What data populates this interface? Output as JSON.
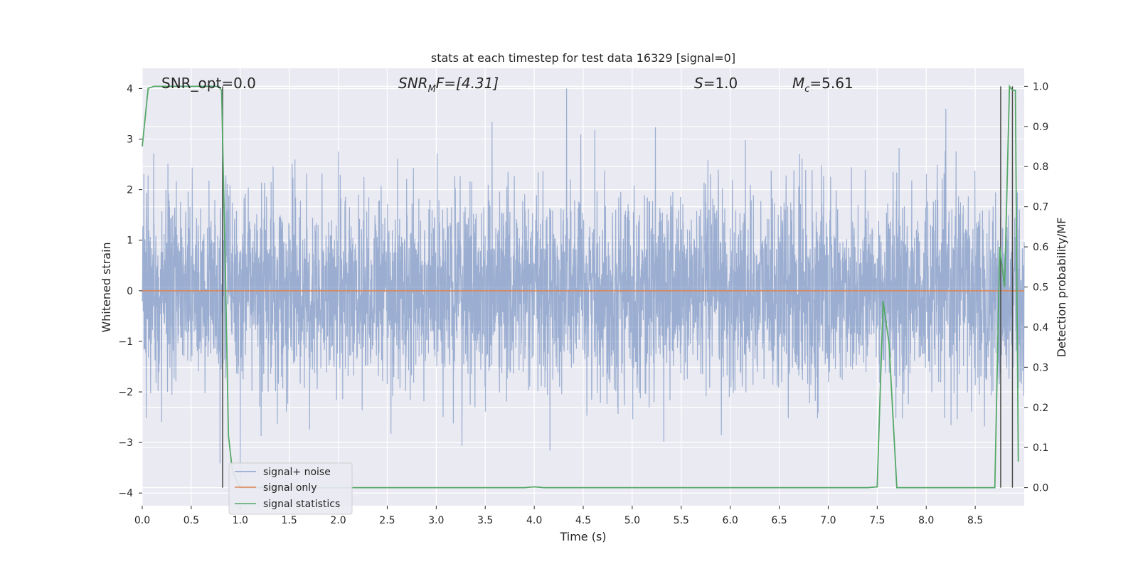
{
  "chart_data": {
    "type": "line",
    "title": "stats at each timestep for test data 16329 [signal=0]",
    "xlabel": "Time (s)",
    "ylabel": "Whitened strain",
    "y2label": "Detection probability/MF",
    "xlim": [
      0.0,
      9.0
    ],
    "ylim": [
      -4.25,
      4.4
    ],
    "y2lim": [
      -0.045,
      1.045
    ],
    "xticks": [
      "0.0",
      "0.5",
      "1.0",
      "1.5",
      "2.0",
      "2.5",
      "3.0",
      "3.5",
      "4.0",
      "4.5",
      "5.0",
      "5.5",
      "6.0",
      "6.5",
      "7.0",
      "7.5",
      "8.0",
      "8.5"
    ],
    "yticks": [
      "4",
      "3",
      "2",
      "1",
      "0",
      "−1",
      "−2",
      "−3",
      "−4"
    ],
    "y2ticks": [
      "1.0",
      "0.9",
      "0.8",
      "0.7",
      "0.6",
      "0.5",
      "0.4",
      "0.3",
      "0.2",
      "0.1",
      "0.0"
    ],
    "grid": true,
    "legend_position": "lower-left",
    "annotations": {
      "snr_opt": "SNR_opt=0.0",
      "snr_mf_base": "SNR",
      "snr_mf_sub": "M",
      "snr_mf_rest": "F=[4.31]",
      "s_italic": "S",
      "s_rest": "=1.0",
      "mc_base": "M",
      "mc_sub": "c",
      "mc_rest": "=5.61"
    },
    "series": [
      {
        "name": "signal+ noise",
        "color": "#4c72b0",
        "style": "whitened strain noise, approx. Gaussian, sigma ~1, peaks to +4.0 at 4.33 s and -3.9 at 1.0 s"
      },
      {
        "name": "signal only",
        "color": "#dd8452",
        "x": [
          0.0,
          9.0
        ],
        "values": [
          0.0,
          0.0
        ]
      },
      {
        "name": "signal statistics",
        "color": "#55a868",
        "axis": "right",
        "x": [
          0.0,
          0.06,
          0.12,
          0.25,
          0.5,
          0.78,
          0.81,
          0.85,
          0.88,
          0.92,
          1.0,
          2.0,
          3.0,
          3.9,
          4.0,
          4.1,
          5.0,
          6.0,
          7.0,
          7.4,
          7.5,
          7.56,
          7.62,
          7.7,
          8.0,
          8.5,
          8.7,
          8.75,
          8.8,
          8.85,
          8.88,
          8.91,
          8.94
        ],
        "values": [
          0.85,
          0.995,
          1.0,
          1.0,
          1.0,
          1.0,
          0.99,
          0.52,
          0.13,
          0.04,
          0.0,
          0.0,
          0.0,
          0.0,
          0.002,
          0.0,
          0.0,
          0.0,
          0.0,
          0.0,
          0.002,
          0.465,
          0.36,
          0.0,
          0.0,
          0.0,
          0.0,
          0.6,
          0.5,
          1.0,
          0.99,
          0.99,
          0.065
        ]
      }
    ],
    "vertical_lines": [
      0.82,
      8.76,
      8.88
    ]
  }
}
